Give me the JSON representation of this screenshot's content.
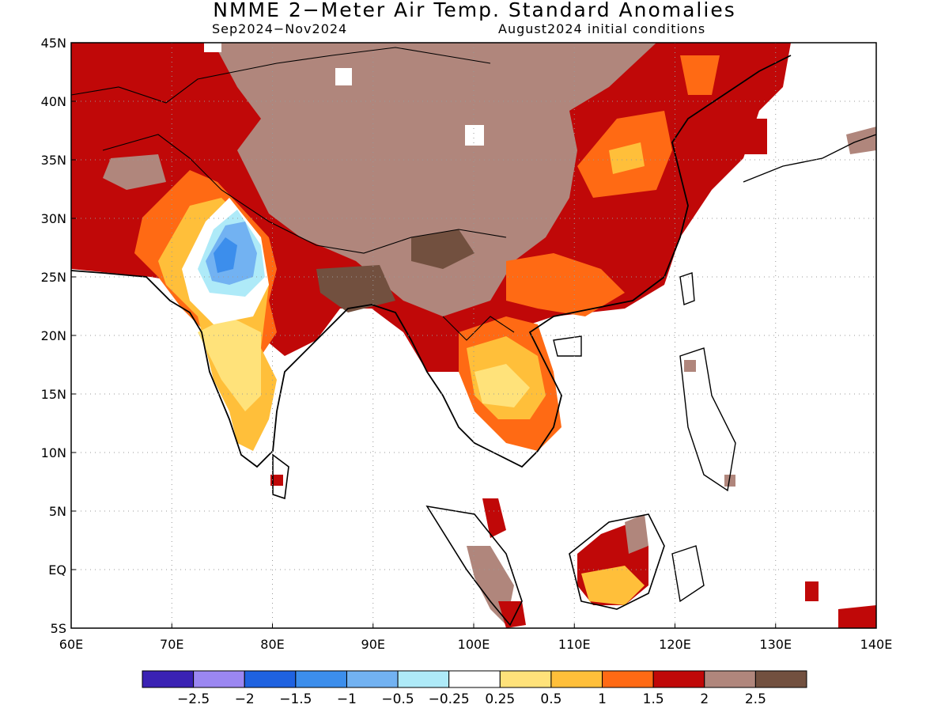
{
  "title": "NMME 2−Meter Air Temp. Standard Anomalies",
  "subtitle_left": "Sep2024−Nov2024",
  "subtitle_right": "August2024 initial conditions",
  "map": {
    "lon_range": [
      60,
      140
    ],
    "lat_range": [
      -5,
      45
    ],
    "lon_ticks": [
      "60E",
      "70E",
      "80E",
      "90E",
      "100E",
      "110E",
      "120E",
      "130E",
      "140E"
    ],
    "lat_ticks": [
      "45N",
      "40N",
      "35N",
      "30N",
      "25N",
      "20N",
      "15N",
      "10N",
      "5N",
      "EQ",
      "5S"
    ],
    "grid": "dotted"
  },
  "colorbar": {
    "colors": [
      "#3a22b4",
      "#9b87f2",
      "#1f62e0",
      "#3c8eec",
      "#72b2f2",
      "#aeeaf8",
      "#ffffff",
      "#ffe27a",
      "#ffbf3a",
      "#ff6a14",
      "#c00808",
      "#b0867c",
      "#72503f"
    ],
    "labels": [
      "−2.5",
      "−2",
      "−1.5",
      "−1",
      "−0.5",
      "−0.25",
      "0.25",
      "0.5",
      "1",
      "1.5",
      "2",
      "2.5"
    ]
  }
}
